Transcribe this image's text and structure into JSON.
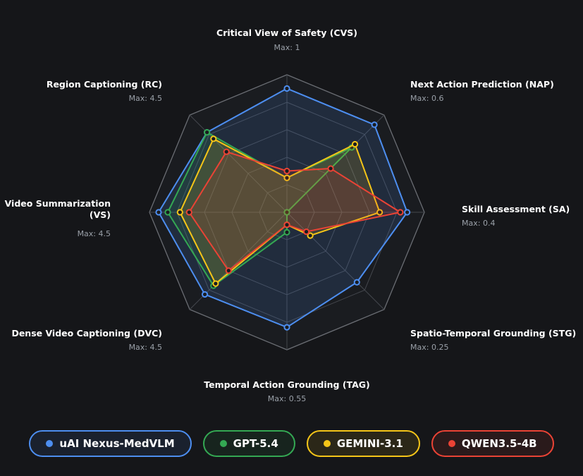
{
  "chart_data": {
    "type": "radar",
    "axes": [
      {
        "label": "Critical View of Safety (CVS)",
        "max_label": "Max: 1",
        "max": 1
      },
      {
        "label": "Next Action Prediction (NAP)",
        "max_label": "Max: 0.6",
        "max": 0.6
      },
      {
        "label": "Skill Assessment (SA)",
        "max_label": "Max: 0.4",
        "max": 0.4
      },
      {
        "label": "Spatio-Temporal Grounding (STG)",
        "max_label": "Max: 0.25",
        "max": 0.25
      },
      {
        "label": "Temporal Action Grounding (TAG)",
        "max_label": "Max: 0.55",
        "max": 0.55
      },
      {
        "label": "Dense Video Captioning (DVC)",
        "max_label": "Max: 4.5",
        "max": 4.5
      },
      {
        "label_lines": [
          "Video Summarization",
          "(VS)"
        ],
        "max_label": "Max: 4.5",
        "max": 4.5
      },
      {
        "label": "Region Captioning (RC)",
        "max_label": "Max: 4.5",
        "max": 4.5
      }
    ],
    "grid_levels": 5,
    "series": [
      {
        "name": "uAI Nexus-MedVLM",
        "color": "#4d8ef0",
        "values": [
          0.9,
          0.54,
          0.35,
          0.18,
          0.46,
          3.8,
          4.2,
          3.7
        ]
      },
      {
        "name": "GPT-5.4",
        "color": "#34a853",
        "values": [
          0.25,
          0.4,
          0.0,
          0.0,
          0.08,
          3.4,
          3.9,
          3.7
        ]
      },
      {
        "name": "GEMINI-3.1",
        "color": "#f5c518",
        "values": [
          0.25,
          0.42,
          0.27,
          0.06,
          0.05,
          3.3,
          3.5,
          3.4
        ]
      },
      {
        "name": "QWEN3.5-4B",
        "color": "#ea4335",
        "values": [
          0.3,
          0.27,
          0.33,
          0.05,
          0.05,
          2.7,
          3.2,
          2.8
        ]
      }
    ]
  }
}
